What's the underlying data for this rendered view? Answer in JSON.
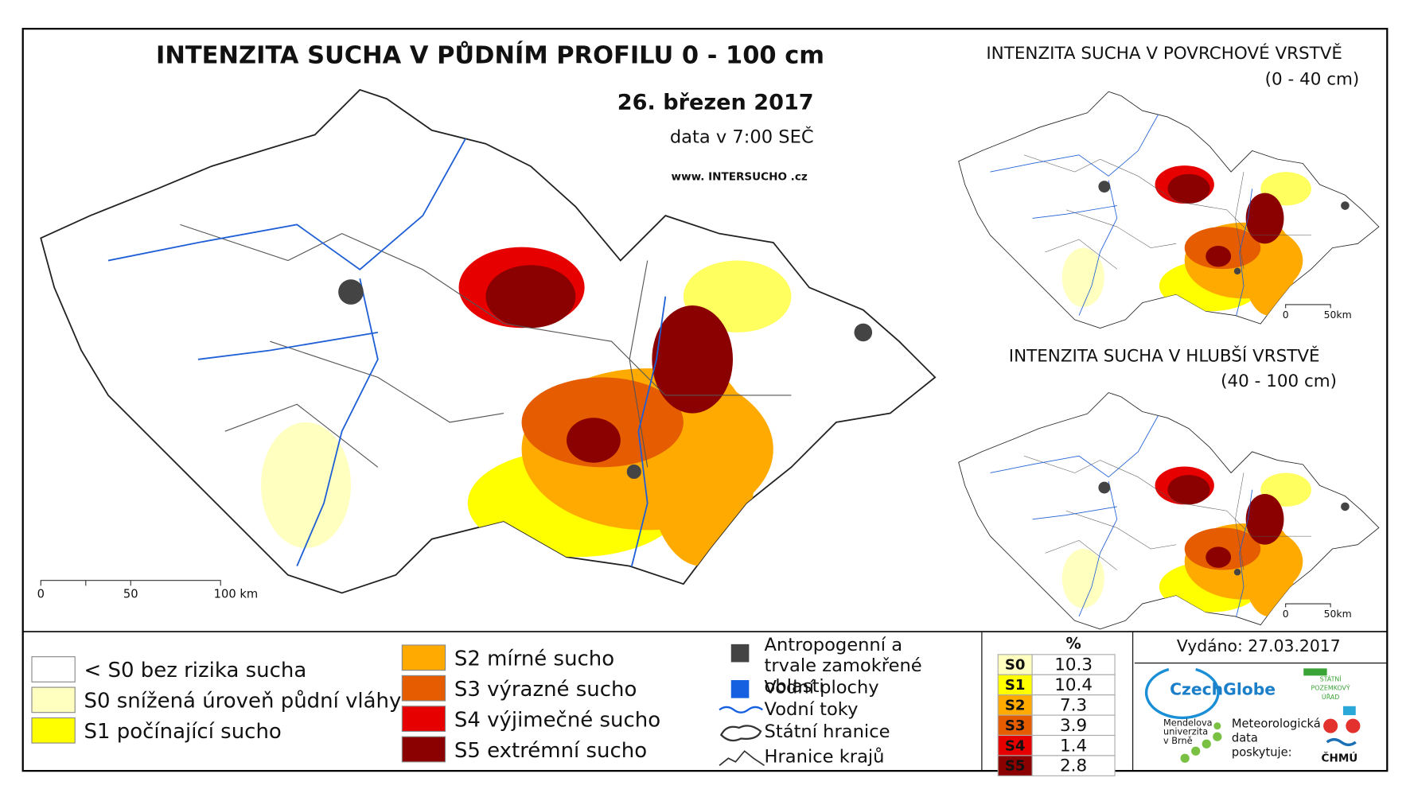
{
  "main_map": {
    "title": "INTENZITA SUCHA V PŮDNÍM PROFILU 0 - 100 cm",
    "date": "26. březen 2017",
    "data_time": "data v 7:00 SEČ",
    "website": "www. INTERSUCHO .cz",
    "scale_labels": [
      "0",
      "50",
      "100 km"
    ]
  },
  "surface_map": {
    "title": "INTENZITA SUCHA V POVRCHOVÉ VRSTVĚ",
    "depth": "(0 - 40 cm)",
    "scale_labels": [
      "0",
      "50km"
    ]
  },
  "deep_map": {
    "title": "INTENZITA SUCHA V HLUBŠÍ VRSTVĚ",
    "depth": "(40 - 100 cm)",
    "scale_labels": [
      "0",
      "50km"
    ]
  },
  "legend": {
    "drought_classes": [
      {
        "label": "< S0 bez rizika sucha",
        "color": "#ffffff"
      },
      {
        "label": "S0 snížená úroveň půdní vláhy",
        "color": "#ffffc0"
      },
      {
        "label": "S1 počínající sucho",
        "color": "#ffff00"
      },
      {
        "label": "S2 mírné sucho",
        "color": "#ffaa00"
      },
      {
        "label": "S3 výrazné sucho",
        "color": "#e65c00"
      },
      {
        "label": "S4 výjimečné sucho",
        "color": "#e60000"
      },
      {
        "label": "S5 extrémní sucho",
        "color": "#8b0000"
      }
    ],
    "symbols": [
      {
        "label": "Antropogenní a trvale zamokřené oblasti"
      },
      {
        "label": "Vodní plochy"
      },
      {
        "label": "Vodní toky"
      },
      {
        "label": "Státní hranice"
      },
      {
        "label": "Hranice krajů"
      }
    ]
  },
  "stats_table": {
    "header": "%",
    "rows": [
      {
        "class": "S0",
        "percent": 10.3
      },
      {
        "class": "S1",
        "percent": 10.4
      },
      {
        "class": "S2",
        "percent": 7.3
      },
      {
        "class": "S3",
        "percent": 3.9
      },
      {
        "class": "S4",
        "percent": 1.4
      },
      {
        "class": "S5",
        "percent": 2.8
      }
    ]
  },
  "publisher": {
    "issued": "Vydáno: 27.03.2017",
    "czechglobe": "CzechGlobe",
    "spu": [
      "STÁTNÍ",
      "POZEMKOVÝ",
      "ÚŘAD"
    ],
    "mendel": [
      "Mendelova",
      "univerzita",
      "v Brně"
    ],
    "data_provider": [
      "Meteorologická",
      "data",
      "poskytuje:"
    ],
    "chmu": "ČHMÚ"
  }
}
